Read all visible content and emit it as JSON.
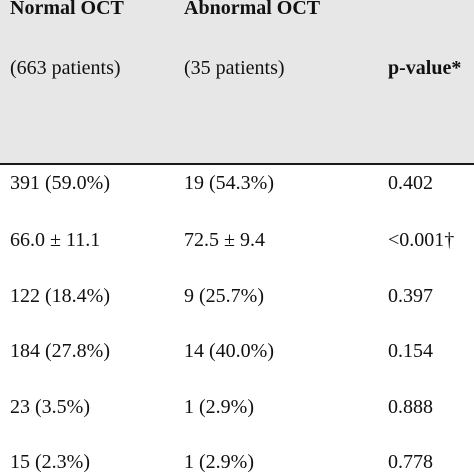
{
  "header": {
    "col1": {
      "title": "Normal OCT",
      "subtitle": "(663 patients)"
    },
    "col2": {
      "title": "Abnormal OCT",
      "subtitle": "(35 patients)"
    },
    "col3": {
      "title": "p-value*"
    }
  },
  "rows": [
    {
      "normal": "391 (59.0%)",
      "abnormal": "19 (54.3%)",
      "p": "0.402"
    },
    {
      "normal": "66.0 ± 11.1",
      "abnormal": "72.5 ± 9.4",
      "p": "<0.001†"
    },
    {
      "normal": "122 (18.4%)",
      "abnormal": "9 (25.7%)",
      "p": "0.397"
    },
    {
      "normal": "184 (27.8%)",
      "abnormal": "14 (40.0%)",
      "p": "0.154"
    },
    {
      "normal": "23 (3.5%)",
      "abnormal": "1 (2.9%)",
      "p": "0.888"
    },
    {
      "normal": "15 (2.3%)",
      "abnormal": "1 (2.9%)",
      "p": "0.778"
    }
  ],
  "colors": {
    "header_background": "#e7e7e7",
    "rule": "#1a1a1a",
    "text": "#111111"
  }
}
